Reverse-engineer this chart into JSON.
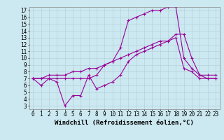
{
  "xlabel": "Windchill (Refroidissement éolien,°C)",
  "bg_color": "#cce8f0",
  "line_color": "#990099",
  "xlim": [
    -0.5,
    23.5
  ],
  "ylim": [
    2.5,
    17.5
  ],
  "xticks": [
    0,
    1,
    2,
    3,
    4,
    5,
    6,
    7,
    8,
    9,
    10,
    11,
    12,
    13,
    14,
    15,
    16,
    17,
    18,
    19,
    20,
    21,
    22,
    23
  ],
  "yticks": [
    3,
    4,
    5,
    6,
    7,
    8,
    9,
    10,
    11,
    12,
    13,
    14,
    15,
    16,
    17
  ],
  "series1_x": [
    0,
    1,
    2,
    3,
    4,
    5,
    6,
    7,
    8,
    9,
    10,
    11,
    12,
    13,
    14,
    15,
    16,
    17,
    18,
    19,
    20,
    21,
    22,
    23
  ],
  "series1_y": [
    7.0,
    6.0,
    7.0,
    6.5,
    3.0,
    4.5,
    4.5,
    7.5,
    5.5,
    6.0,
    6.5,
    7.5,
    9.5,
    10.5,
    11.0,
    11.5,
    12.0,
    12.5,
    13.0,
    8.5,
    8.0,
    7.0,
    7.0,
    7.0
  ],
  "series2_x": [
    0,
    1,
    2,
    3,
    4,
    5,
    6,
    7,
    8,
    9,
    10,
    11,
    12,
    13,
    14,
    15,
    16,
    17,
    18,
    19,
    20,
    21,
    22,
    23
  ],
  "series2_y": [
    7.0,
    7.0,
    7.0,
    7.0,
    7.0,
    7.0,
    7.0,
    7.0,
    7.5,
    9.0,
    9.5,
    11.5,
    15.5,
    16.0,
    16.5,
    17.0,
    17.0,
    17.5,
    17.5,
    10.0,
    8.5,
    7.5,
    7.0,
    7.0
  ],
  "series3_x": [
    0,
    1,
    2,
    3,
    4,
    5,
    6,
    7,
    8,
    9,
    10,
    11,
    12,
    13,
    14,
    15,
    16,
    17,
    18,
    19,
    20,
    21,
    22,
    23
  ],
  "series3_y": [
    7.0,
    7.0,
    7.5,
    7.5,
    7.5,
    8.0,
    8.0,
    8.5,
    8.5,
    9.0,
    9.5,
    10.0,
    10.5,
    11.0,
    11.5,
    12.0,
    12.5,
    12.5,
    13.5,
    13.5,
    10.0,
    7.5,
    7.5,
    7.5
  ],
  "grid_color": "#b0ccd8",
  "marker": "+",
  "markersize": 3,
  "linewidth": 0.8,
  "xlabel_fontsize": 6.5,
  "tick_fontsize": 5.5
}
